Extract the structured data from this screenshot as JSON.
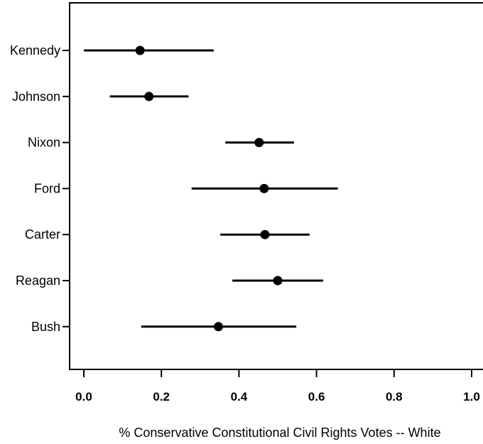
{
  "chart_data": {
    "type": "scatter",
    "title": "",
    "xlabel": "% Conservative Constitutional Civil Rights Votes -- White",
    "ylabel": "",
    "xlim": [
      0.0,
      1.0
    ],
    "x_ticks": [
      "0.0",
      "0.2",
      "0.4",
      "0.6",
      "0.8",
      "1.0"
    ],
    "grid": false,
    "legend": "none",
    "categories": [
      "Kennedy",
      "Johnson",
      "Nixon",
      "Ford",
      "Carter",
      "Reagan",
      "Bush"
    ],
    "estimates": [
      0.145,
      0.168,
      0.452,
      0.465,
      0.467,
      0.5,
      0.347
    ],
    "interval_low": [
      0.0,
      0.067,
      0.365,
      0.278,
      0.352,
      0.383,
      0.148
    ],
    "interval_high": [
      0.335,
      0.27,
      0.542,
      0.655,
      0.582,
      0.617,
      0.548
    ],
    "colors": {
      "marker": "#000000",
      "line": "#000000",
      "frame": "#000000"
    }
  }
}
